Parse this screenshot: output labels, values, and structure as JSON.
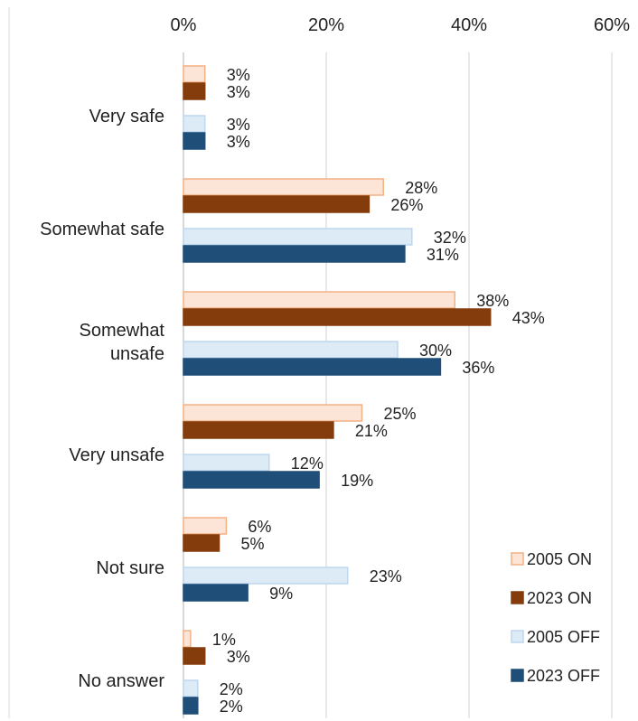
{
  "chart_data": {
    "type": "bar",
    "orientation": "horizontal",
    "categories": [
      [
        "Very safe"
      ],
      [
        "Somewhat safe"
      ],
      [
        "Somewhat",
        "unsafe"
      ],
      [
        "Very unsafe"
      ],
      [
        "Not sure"
      ],
      [
        "No answer"
      ]
    ],
    "series": [
      {
        "name": "2005 ON",
        "values": [
          3,
          28,
          38,
          25,
          6,
          1
        ],
        "labels": [
          "3%",
          "28%",
          "38%",
          "25%",
          "6%",
          "1%"
        ],
        "fill": "#FCE4D6",
        "stroke": "#F4B183"
      },
      {
        "name": "2023 ON",
        "values": [
          3,
          26,
          43,
          21,
          5,
          3
        ],
        "labels": [
          "3%",
          "26%",
          "43%",
          "21%",
          "5%",
          "3%"
        ],
        "fill": "#843C0C",
        "stroke": "#843C0C"
      },
      {
        "name": "2005 OFF",
        "values": [
          3,
          32,
          30,
          12,
          23,
          2
        ],
        "labels": [
          "3%",
          "32%",
          "30%",
          "12%",
          "23%",
          "2%"
        ],
        "fill": "#DDEBF7",
        "stroke": "#BDD7EE"
      },
      {
        "name": "2023 OFF",
        "values": [
          3,
          31,
          36,
          19,
          9,
          2
        ],
        "labels": [
          "3%",
          "31%",
          "36%",
          "19%",
          "9%",
          "2%"
        ],
        "fill": "#1F4E79",
        "stroke": "#1F4E79"
      }
    ],
    "xlim": [
      0,
      60
    ],
    "xticks": [
      "0%",
      "20%",
      "40%",
      "60%"
    ],
    "xtick_values": [
      0,
      20,
      40,
      60
    ],
    "x_axis_position": "top",
    "grid": "vertical",
    "legend_position": "bottom-right",
    "title": "",
    "xlabel": "",
    "ylabel": ""
  }
}
